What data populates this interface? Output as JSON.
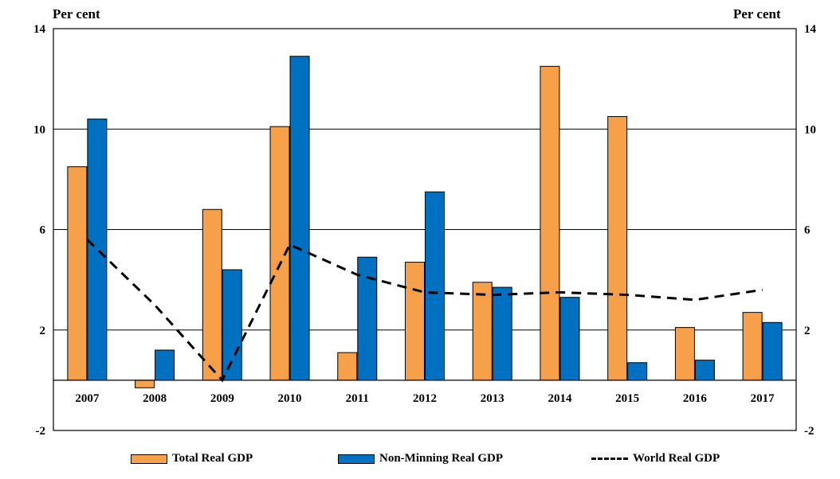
{
  "chart_data": {
    "type": "bar",
    "categories": [
      "2007",
      "2008",
      "2009",
      "2010",
      "2011",
      "2012",
      "2013",
      "2014",
      "2015",
      "2016",
      "2017"
    ],
    "series": [
      {
        "name": "Total Real GDP",
        "type": "bar",
        "color": "#F7A04A",
        "values": [
          8.5,
          -0.3,
          6.8,
          10.1,
          1.1,
          4.7,
          3.9,
          12.5,
          10.5,
          2.1,
          2.7
        ]
      },
      {
        "name": "Non-Minning Real GDP",
        "type": "bar",
        "color": "#0070C0",
        "values": [
          10.4,
          1.2,
          4.4,
          12.9,
          4.9,
          7.5,
          3.7,
          3.3,
          0.7,
          0.8,
          2.3
        ]
      },
      {
        "name": "World Real GDP",
        "type": "line",
        "style": "dashed",
        "color": "#000000",
        "values": [
          5.6,
          3.0,
          0.0,
          5.4,
          4.2,
          3.5,
          3.4,
          3.5,
          3.4,
          3.2,
          3.6
        ]
      }
    ],
    "ylim": [
      -2,
      14
    ],
    "yticks": [
      -2,
      2,
      6,
      10,
      14
    ],
    "ylabel_left": "Per cent",
    "ylabel_right": "Per cent",
    "grid": true,
    "legend_position": "bottom"
  }
}
